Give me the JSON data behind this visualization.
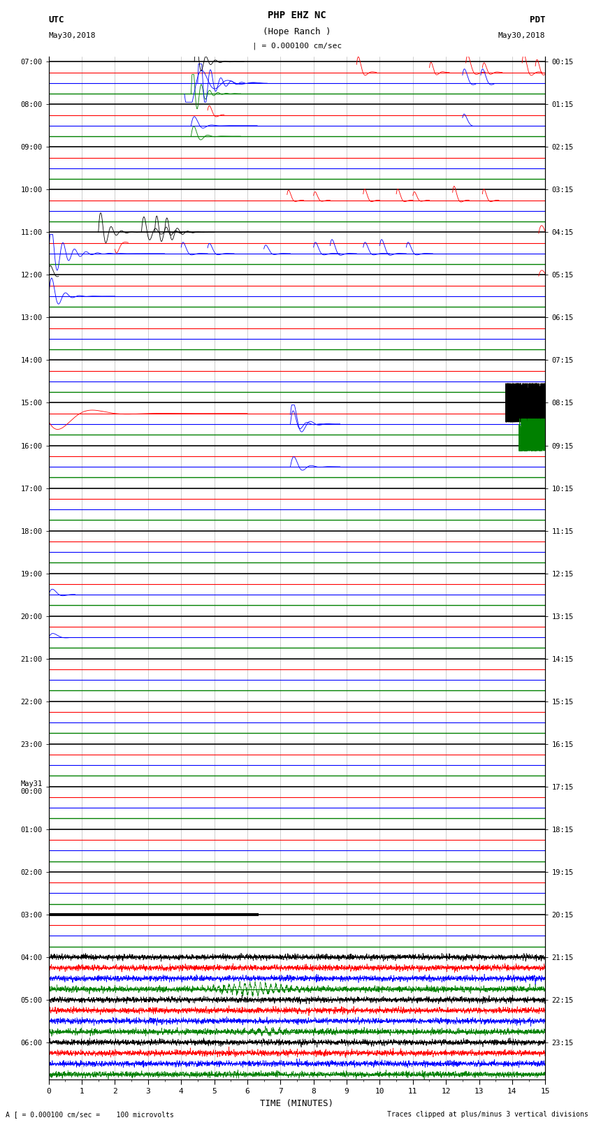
{
  "title_line1": "PHP EHZ NC",
  "title_line2": "(Hope Ranch )",
  "scale_text": "| = 0.000100 cm/sec",
  "left_header": "UTC",
  "left_date": "May30,2018",
  "right_header": "PDT",
  "right_date": "May30,2018",
  "xlabel": "TIME (MINUTES)",
  "bottom_left": "A [ = 0.000100 cm/sec =    100 microvolts",
  "bottom_right": "Traces clipped at plus/minus 3 vertical divisions",
  "xmin": 0,
  "xmax": 15,
  "figwidth": 8.5,
  "figheight": 16.13,
  "dpi": 100,
  "bg_color": "#ffffff",
  "line_colors": [
    "#000000",
    "#ff0000",
    "#0000ff",
    "#008000"
  ],
  "utc_labels": [
    "07:00",
    "08:00",
    "09:00",
    "10:00",
    "11:00",
    "12:00",
    "13:00",
    "14:00",
    "15:00",
    "16:00",
    "17:00",
    "18:00",
    "19:00",
    "20:00",
    "21:00",
    "22:00",
    "23:00",
    "May31\n00:00",
    "01:00",
    "02:00",
    "03:00",
    "04:00",
    "05:00",
    "06:00"
  ],
  "pdt_labels": [
    "00:15",
    "01:15",
    "02:15",
    "03:15",
    "04:15",
    "05:15",
    "06:15",
    "07:15",
    "08:15",
    "09:15",
    "10:15",
    "11:15",
    "12:15",
    "13:15",
    "14:15",
    "15:15",
    "16:15",
    "17:15",
    "18:15",
    "19:15",
    "20:15",
    "21:15",
    "22:15",
    "23:15"
  ]
}
